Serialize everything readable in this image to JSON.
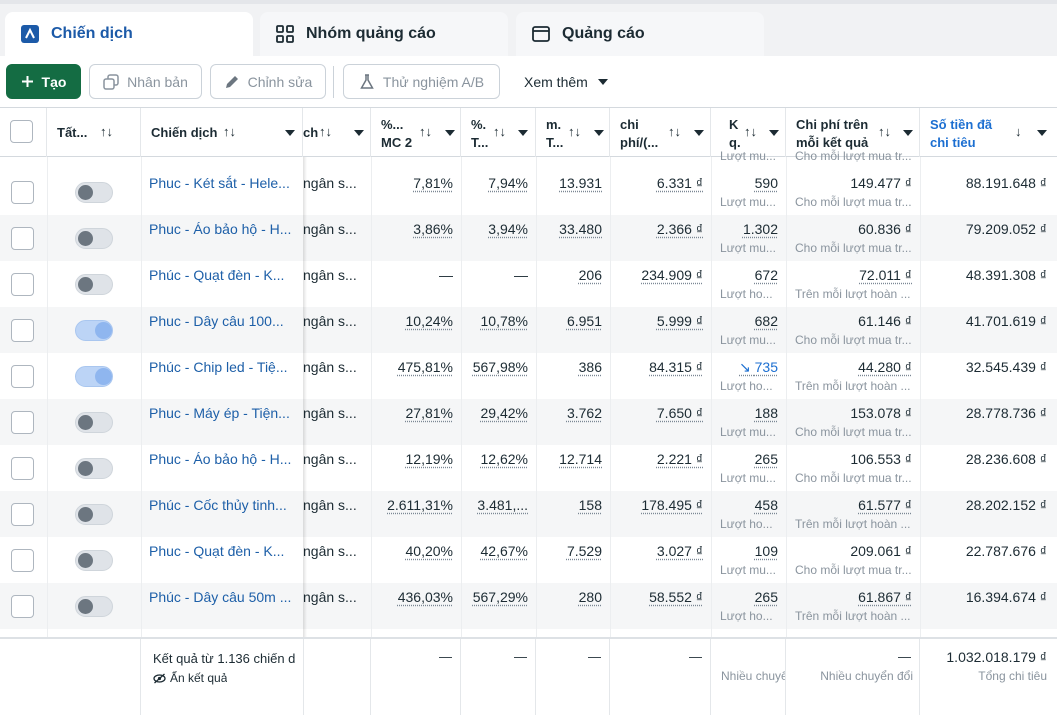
{
  "tabs": [
    {
      "label": "Chiến dịch",
      "icon": "campaign-icon",
      "active": true
    },
    {
      "label": "Nhóm quảng cáo",
      "icon": "grid-icon",
      "active": false
    },
    {
      "label": "Quảng cáo",
      "icon": "ad-window-icon",
      "active": false
    }
  ],
  "toolbar": {
    "create_label": "Tạo",
    "duplicate_label": "Nhân bản",
    "edit_label": "Chỉnh sửa",
    "ab_test_label": "Thử nghiệm A/B",
    "more_label": "Xem thêm"
  },
  "colors": {
    "accent": "#1c6fd1",
    "create": "#146c43",
    "link": "#1d5fa8"
  },
  "columns": {
    "all": "Tất...",
    "campaign": "Chiến dịch",
    "budget_suffix": "ch",
    "ctr_line1": "%...",
    "ctr_line2": "MC 2",
    "pct_line1": "%.",
    "pct_line2": "T...",
    "m_line1": "m.",
    "m_line2": "T...",
    "cpc_line1": "chi",
    "cpc_line2": "phí/(...",
    "k_line1": "K",
    "k_line2": "q.",
    "cpr_line1": "Chi phí trên",
    "cpr_line2": "mỗi kết quả",
    "spend_line1": "Số tiền đã",
    "spend_line2": "chi tiêu",
    "sort_glyph": "↑↓",
    "sort_desc_glyph": "↓"
  },
  "top_partial": {
    "result_sub": "Lượt mu...",
    "cpr_sub": "Cho mỗi lượt mua tr..."
  },
  "rows": [
    {
      "name": "Phuc - Két sắt - Hele...",
      "budget": "ngân s...",
      "c1": "7,81%",
      "c2": "7,94%",
      "c3": "13.931",
      "c4": "6.331 ₫",
      "result": "590",
      "result_sub": "Lượt mu...",
      "cpr": "149.477 ₫",
      "cpr_sub": "Cho mỗi lượt mua tr...",
      "spend": "88.191.648 ₫",
      "on": false,
      "trend": false,
      "cpr_dotted": false
    },
    {
      "name": "Phuc - Áo bảo hộ - H...",
      "budget": "ngân s...",
      "c1": "3,86%",
      "c2": "3,94%",
      "c3": "33.480",
      "c4": "2.366 ₫",
      "result": "1.302",
      "result_sub": "Lượt mu...",
      "cpr": "60.836 ₫",
      "cpr_sub": "Cho mỗi lượt mua tr...",
      "spend": "79.209.052 ₫",
      "on": false,
      "trend": false,
      "cpr_dotted": false
    },
    {
      "name": "Phúc - Quạt đèn - K...",
      "budget": "ngân s...",
      "c1": "—",
      "c2": "—",
      "c3": "206",
      "c4": "234.909 ₫",
      "result": "672",
      "result_sub": "Lượt ho...",
      "cpr": "72.011 ₫",
      "cpr_sub": "Trên mỗi lượt hoàn ...",
      "spend": "48.391.308 ₫",
      "on": false,
      "trend": false,
      "cpr_dotted": true
    },
    {
      "name": "Phuc - Dây câu 100...",
      "budget": "ngân s...",
      "c1": "10,24%",
      "c2": "10,78%",
      "c3": "6.951",
      "c4": "5.999 ₫",
      "result": "682",
      "result_sub": "Lượt mu...",
      "cpr": "61.146 ₫",
      "cpr_sub": "Cho mỗi lượt mua tr...",
      "spend": "41.701.619 ₫",
      "on": true,
      "trend": false,
      "cpr_dotted": false
    },
    {
      "name": "Phúc - Chip led - Tiệ...",
      "budget": "ngân s...",
      "c1": "475,81%",
      "c2": "567,98%",
      "c3": "386",
      "c4": "84.315 ₫",
      "result": "735",
      "result_sub": "Lượt ho...",
      "cpr": "44.280 ₫",
      "cpr_sub": "Trên mỗi lượt hoàn ...",
      "spend": "32.545.439 ₫",
      "on": true,
      "trend": true,
      "cpr_dotted": true
    },
    {
      "name": "Phuc - Máy ép - Tiện...",
      "budget": "ngân s...",
      "c1": "27,81%",
      "c2": "29,42%",
      "c3": "3.762",
      "c4": "7.650 ₫",
      "result": "188",
      "result_sub": "Lượt mu...",
      "cpr": "153.078 ₫",
      "cpr_sub": "Cho mỗi lượt mua tr...",
      "spend": "28.778.736 ₫",
      "on": false,
      "trend": false,
      "cpr_dotted": false
    },
    {
      "name": "Phuc - Áo bảo hộ - H...",
      "budget": "ngân s...",
      "c1": "12,19%",
      "c2": "12,62%",
      "c3": "12.714",
      "c4": "2.221 ₫",
      "result": "265",
      "result_sub": "Lượt mu...",
      "cpr": "106.553 ₫",
      "cpr_sub": "Cho mỗi lượt mua tr...",
      "spend": "28.236.608 ₫",
      "on": false,
      "trend": false,
      "cpr_dotted": false
    },
    {
      "name": "Phúc - Cốc thủy tinh...",
      "budget": "ngân s...",
      "c1": "2.611,31%",
      "c2": "3.481,...",
      "c3": "158",
      "c4": "178.495 ₫",
      "result": "458",
      "result_sub": "Lượt ho...",
      "cpr": "61.577 ₫",
      "cpr_sub": "Trên mỗi lượt hoàn ...",
      "spend": "28.202.152 ₫",
      "on": false,
      "trend": false,
      "cpr_dotted": true
    },
    {
      "name": "Phuc - Quạt đèn - K...",
      "budget": "ngân s...",
      "c1": "40,20%",
      "c2": "42,67%",
      "c3": "7.529",
      "c4": "3.027 ₫",
      "result": "109",
      "result_sub": "Lượt mu...",
      "cpr": "209.061 ₫",
      "cpr_sub": "Cho mỗi lượt mua tr...",
      "spend": "22.787.676 ₫",
      "on": false,
      "trend": false,
      "cpr_dotted": false
    },
    {
      "name": "Phúc - Dây câu 50m ...",
      "budget": "ngân s...",
      "c1": "436,03%",
      "c2": "567,29%",
      "c3": "280",
      "c4": "58.552 ₫",
      "result": "265",
      "result_sub": "Lượt ho...",
      "cpr": "61.867 ₫",
      "cpr_sub": "Trên mỗi lượt hoàn ...",
      "spend": "16.394.674 ₫",
      "on": false,
      "trend": false,
      "cpr_dotted": true
    }
  ],
  "footer": {
    "summary": "Kết quả từ 1.136 chiến d",
    "hide_results": "Ẩn kết quả",
    "dash": "—",
    "result_sub": "Nhiều chuyể",
    "cpr_sub": "Nhiều chuyển đổi",
    "spend": "1.032.018.179 ₫",
    "spend_sub": "Tổng chi tiêu"
  }
}
